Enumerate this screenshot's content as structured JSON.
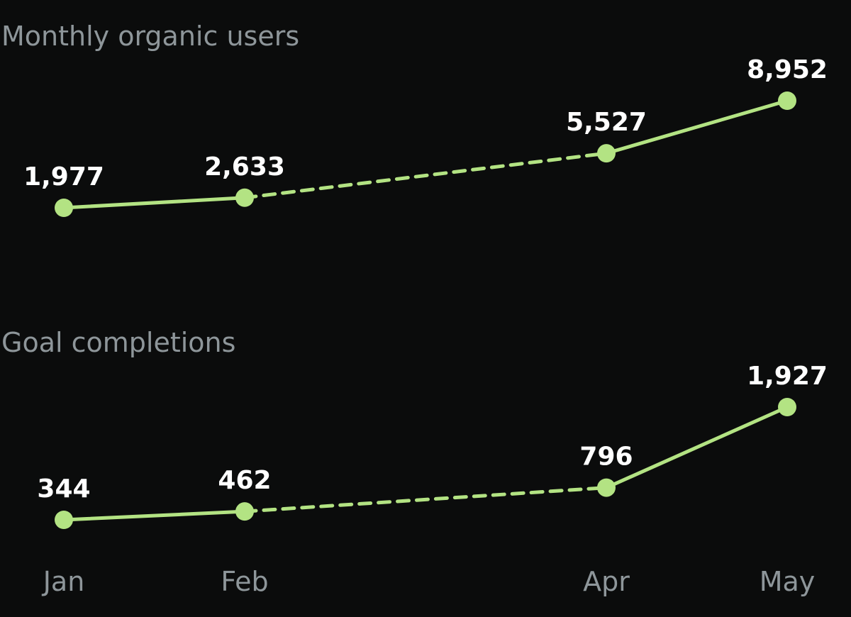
{
  "colors": {
    "background": "#0b0c0c",
    "series": "#b3e383",
    "label": "#ffffff",
    "muted": "#8e969a"
  },
  "chart_data": [
    {
      "type": "line",
      "title": "Monthly organic users",
      "x": [
        "Jan",
        "Feb",
        "Apr",
        "May"
      ],
      "series": [
        {
          "values": [
            1977,
            2633,
            5527,
            8952
          ],
          "data_labels": [
            "1,977",
            "2,633",
            "5,527",
            "8,952"
          ],
          "segment_styles": [
            "solid",
            "dashed",
            "solid"
          ]
        }
      ],
      "xlabel": "",
      "ylabel": "",
      "grid": false,
      "legend": "none"
    },
    {
      "type": "line",
      "title": "Goal completions",
      "x": [
        "Jan",
        "Feb",
        "Apr",
        "May"
      ],
      "series": [
        {
          "values": [
            344,
            462,
            796,
            1927
          ],
          "data_labels": [
            "344",
            "462",
            "796",
            "1,927"
          ],
          "segment_styles": [
            "solid",
            "dashed",
            "solid"
          ]
        }
      ],
      "xlabel": "",
      "ylabel": "",
      "grid": false,
      "legend": "none"
    }
  ],
  "x_axis": {
    "ticks": [
      "Jan",
      "Feb",
      "Apr",
      "May"
    ]
  }
}
